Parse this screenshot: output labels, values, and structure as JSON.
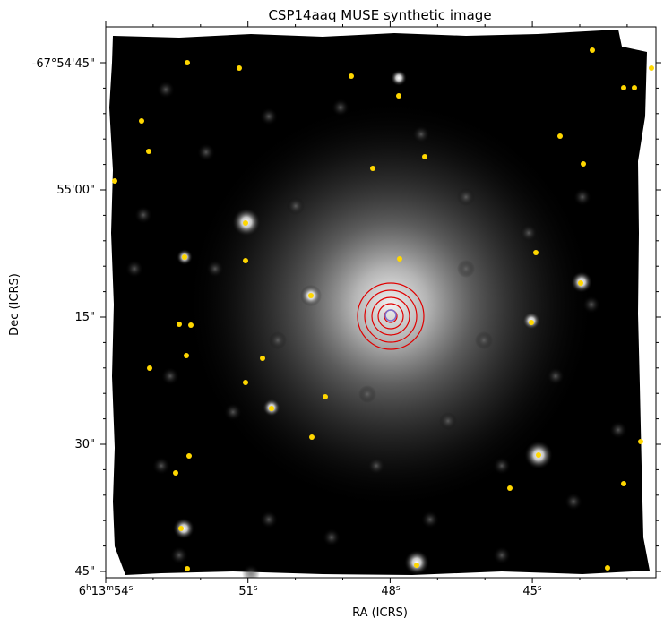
{
  "figure": {
    "title": "CSP14aaq MUSE synthetic image",
    "xlabel": "RA (ICRS)",
    "ylabel": "Dec (ICRS)"
  },
  "x_ticks": [
    {
      "label": "6h13m54s",
      "parts": {
        "h": "6",
        "h_unit": "h",
        "m": "13",
        "m_unit": "m",
        "s": "54",
        "s_unit": "s"
      }
    },
    {
      "label": "51s",
      "parts": {
        "s": "51",
        "s_unit": "s"
      }
    },
    {
      "label": "48s",
      "parts": {
        "s": "48",
        "s_unit": "s"
      }
    },
    {
      "label": "45s",
      "parts": {
        "s": "45",
        "s_unit": "s"
      }
    }
  ],
  "y_ticks": [
    {
      "label": "-67°54'45\""
    },
    {
      "label": "55'00\""
    },
    {
      "label": "15\""
    },
    {
      "label": "30\""
    },
    {
      "label": "45\""
    }
  ],
  "colors": {
    "background_image": "#000000",
    "galaxy_glow": "#d9d9d9",
    "star_marker": "#ffd700",
    "contour": "#e00000",
    "center_marker": "#7b6fd0",
    "axis": "#000000"
  },
  "colormap": "grayscale",
  "overlays": {
    "contour_levels_count": 5,
    "star_marker_count": 46
  }
}
